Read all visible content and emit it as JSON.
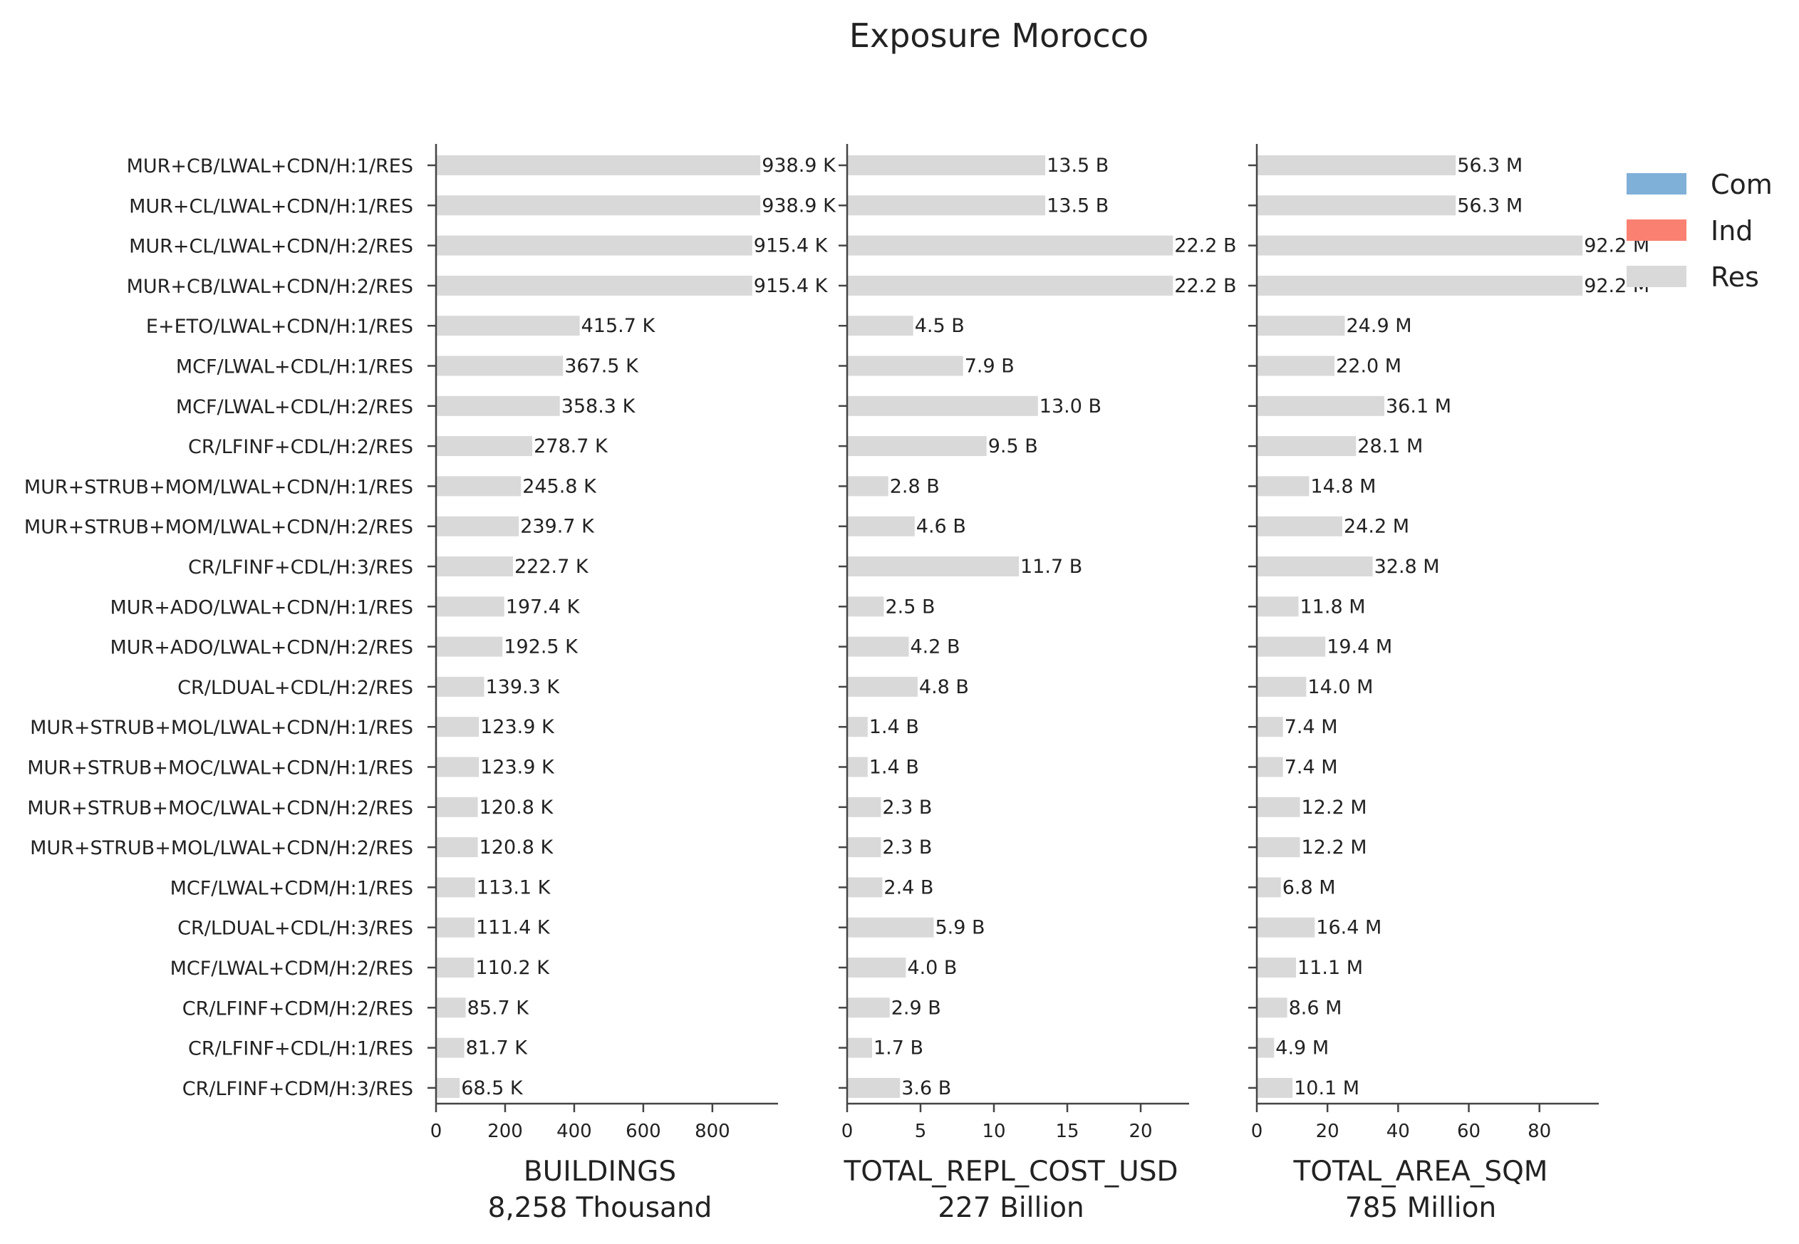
{
  "chart_data": {
    "type": "bar",
    "orientation": "horizontal",
    "title": "Exposure Morocco",
    "categories": [
      "MUR+CB/LWAL+CDN/H:1/RES",
      "MUR+CL/LWAL+CDN/H:1/RES",
      "MUR+CL/LWAL+CDN/H:2/RES",
      "MUR+CB/LWAL+CDN/H:2/RES",
      "E+ETO/LWAL+CDN/H:1/RES",
      "MCF/LWAL+CDL/H:1/RES",
      "MCF/LWAL+CDL/H:2/RES",
      "CR/LFINF+CDL/H:2/RES",
      "MUR+STRUB+MOM/LWAL+CDN/H:1/RES",
      "MUR+STRUB+MOM/LWAL+CDN/H:2/RES",
      "CR/LFINF+CDL/H:3/RES",
      "MUR+ADO/LWAL+CDN/H:1/RES",
      "MUR+ADO/LWAL+CDN/H:2/RES",
      "CR/LDUAL+CDL/H:2/RES",
      "MUR+STRUB+MOL/LWAL+CDN/H:1/RES",
      "MUR+STRUB+MOC/LWAL+CDN/H:1/RES",
      "MUR+STRUB+MOC/LWAL+CDN/H:2/RES",
      "MUR+STRUB+MOL/LWAL+CDN/H:2/RES",
      "MCF/LWAL+CDM/H:1/RES",
      "CR/LDUAL+CDL/H:3/RES",
      "MCF/LWAL+CDM/H:2/RES",
      "CR/LFINF+CDM/H:2/RES",
      "CR/LFINF+CDL/H:1/RES",
      "CR/LFINF+CDM/H:3/RES"
    ],
    "legend": {
      "placement": "top-right",
      "entries": [
        {
          "name": "Com",
          "color": "#7fb0d8"
        },
        {
          "name": "Ind",
          "color": "#fa8072"
        },
        {
          "name": "Res",
          "color": "#d9d9d9"
        }
      ]
    },
    "panels": [
      {
        "xlabel": "BUILDINGS",
        "xlabel_sub": "8,258 Thousand",
        "xlim": [
          0,
          990
        ],
        "ticks": [
          0,
          200,
          400,
          600,
          800
        ],
        "series": [
          {
            "name": "Res",
            "color": "#d9d9d9",
            "values": [
              938.9,
              938.9,
              915.4,
              915.4,
              415.7,
              367.5,
              358.3,
              278.7,
              245.8,
              239.7,
              222.7,
              197.4,
              192.5,
              139.3,
              123.9,
              123.9,
              120.8,
              120.8,
              113.1,
              111.4,
              110.2,
              85.7,
              81.7,
              68.5
            ]
          }
        ],
        "value_labels": [
          "938.9 K",
          "938.9 K",
          "915.4 K",
          "915.4 K",
          "415.7 K",
          "367.5 K",
          "358.3 K",
          "278.7 K",
          "245.8 K",
          "239.7 K",
          "222.7 K",
          "197.4 K",
          "192.5 K",
          "139.3 K",
          "123.9 K",
          "123.9 K",
          "120.8 K",
          "120.8 K",
          "113.1 K",
          "111.4 K",
          "110.2 K",
          "85.7 K",
          "81.7 K",
          "68.5 K"
        ]
      },
      {
        "xlabel": "TOTAL_REPL_COST_USD",
        "xlabel_sub": "227 Billion",
        "xlim": [
          0,
          23.3
        ],
        "ticks": [
          0,
          5,
          10,
          15,
          20
        ],
        "series": [
          {
            "name": "Res",
            "color": "#d9d9d9",
            "values": [
              13.5,
              13.5,
              22.2,
              22.2,
              4.5,
              7.9,
              13.0,
              9.5,
              2.8,
              4.6,
              11.7,
              2.5,
              4.2,
              4.8,
              1.4,
              1.4,
              2.3,
              2.3,
              2.4,
              5.9,
              4.0,
              2.9,
              1.7,
              3.6
            ]
          }
        ],
        "value_labels": [
          "13.5 B",
          "13.5 B",
          "22.2 B",
          "22.2 B",
          "4.5 B",
          "7.9 B",
          "13.0 B",
          "9.5 B",
          "2.8 B",
          "4.6 B",
          "11.7 B",
          "2.5 B",
          "4.2 B",
          "4.8 B",
          "1.4 B",
          "1.4 B",
          "2.3 B",
          "2.3 B",
          "2.4 B",
          "5.9 B",
          "4.0 B",
          "2.9 B",
          "1.7 B",
          "3.6 B"
        ]
      },
      {
        "xlabel": "TOTAL_AREA_SQM",
        "xlabel_sub": "785 Million",
        "xlim": [
          0,
          96.8
        ],
        "ticks": [
          0,
          20,
          40,
          60,
          80
        ],
        "series": [
          {
            "name": "Res",
            "color": "#d9d9d9",
            "values": [
              56.3,
              56.3,
              92.2,
              92.2,
              24.9,
              22.0,
              36.1,
              28.1,
              14.8,
              24.2,
              32.8,
              11.8,
              19.4,
              14.0,
              7.4,
              7.4,
              12.2,
              12.2,
              6.8,
              16.4,
              11.1,
              8.6,
              4.9,
              10.1
            ]
          }
        ],
        "value_labels": [
          "56.3 M",
          "56.3 M",
          "92.2 M",
          "92.2 M",
          "24.9 M",
          "22.0 M",
          "36.1 M",
          "28.1 M",
          "14.8 M",
          "24.2 M",
          "32.8 M",
          "11.8 M",
          "19.4 M",
          "14.0 M",
          "7.4 M",
          "7.4 M",
          "12.2 M",
          "12.2 M",
          "6.8 M",
          "16.4 M",
          "11.1 M",
          "8.6 M",
          "4.9 M",
          "10.1 M"
        ]
      }
    ]
  }
}
